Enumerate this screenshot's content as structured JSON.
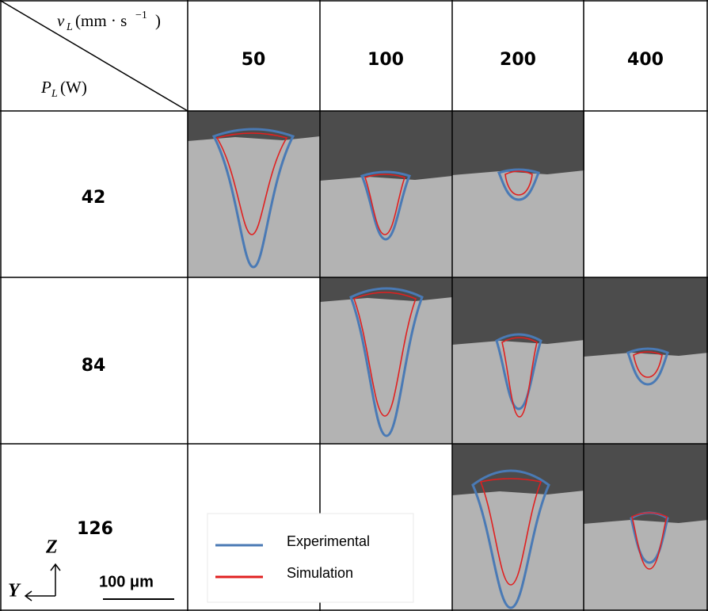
{
  "header": {
    "velocity": {
      "symbol": "v",
      "subscript": "L",
      "unit": "(mm · s",
      "exponent": "−1",
      "close": ")"
    },
    "power": {
      "symbol": "P",
      "subscript": "L",
      "unit": "(W)"
    }
  },
  "columns": [
    "50",
    "100",
    "200",
    "400"
  ],
  "rows": [
    "42",
    "84",
    "126"
  ],
  "legend": [
    {
      "name": "Experimental",
      "color": "#4a7ab5"
    },
    {
      "name": "Simulation",
      "color": "#e02020"
    }
  ],
  "scale_bar": "100 μm",
  "axes": {
    "vertical": "Z",
    "horizontal": "Y"
  }
}
